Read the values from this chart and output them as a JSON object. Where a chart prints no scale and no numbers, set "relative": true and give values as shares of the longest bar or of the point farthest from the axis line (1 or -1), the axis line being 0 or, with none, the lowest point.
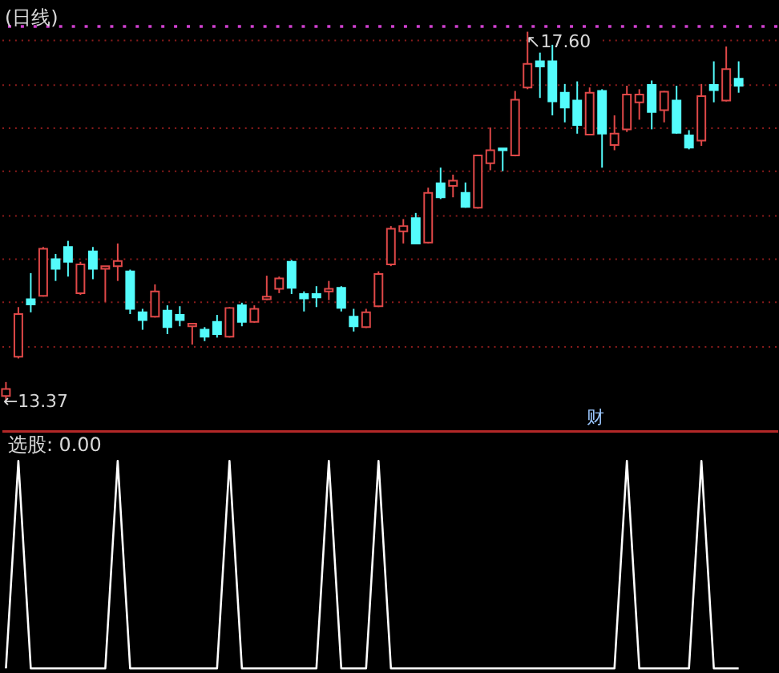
{
  "chart_data": [
    {
      "type": "candlestick",
      "title": "(日线)",
      "categories": [
        null,
        null,
        null,
        null,
        null,
        null,
        null,
        null,
        null,
        null,
        null,
        null,
        null,
        null,
        null,
        null,
        null,
        null,
        null,
        null,
        null,
        null,
        null,
        null,
        null,
        null,
        null,
        null,
        null,
        null,
        null,
        null,
        null,
        null,
        null,
        null,
        null,
        null,
        null,
        null,
        null,
        null,
        null,
        null,
        null,
        null,
        null,
        null,
        null,
        null,
        null,
        null,
        null,
        null,
        null,
        null,
        null,
        null,
        null,
        null
      ],
      "ohlc": [
        [
          13.42,
          13.58,
          13.37,
          13.5
        ],
        [
          13.87,
          14.44,
          13.85,
          14.36
        ],
        [
          14.53,
          14.83,
          14.38,
          14.47
        ],
        [
          14.57,
          15.13,
          14.56,
          15.11
        ],
        [
          14.99,
          15.05,
          14.74,
          14.88
        ],
        [
          15.13,
          15.2,
          14.79,
          14.96
        ],
        [
          14.6,
          14.96,
          14.58,
          14.93
        ],
        [
          15.08,
          15.13,
          14.76,
          14.88
        ],
        [
          14.88,
          14.91,
          14.5,
          14.91
        ],
        [
          14.91,
          15.17,
          14.74,
          14.97
        ],
        [
          14.85,
          14.87,
          14.36,
          14.42
        ],
        [
          14.38,
          14.42,
          14.18,
          14.29
        ],
        [
          14.33,
          14.7,
          14.32,
          14.62
        ],
        [
          14.4,
          14.46,
          14.13,
          14.21
        ],
        [
          14.35,
          14.45,
          14.22,
          14.29
        ],
        [
          14.22,
          14.25,
          14.01,
          14.25
        ],
        [
          14.18,
          14.21,
          14.05,
          14.1
        ],
        [
          14.27,
          14.35,
          14.09,
          14.13
        ],
        [
          14.1,
          14.44,
          14.09,
          14.43
        ],
        [
          14.46,
          14.49,
          14.22,
          14.27
        ],
        [
          14.27,
          14.46,
          14.26,
          14.42
        ],
        [
          14.53,
          14.8,
          14.52,
          14.56
        ],
        [
          14.65,
          14.79,
          14.6,
          14.77
        ],
        [
          14.96,
          14.98,
          14.59,
          14.66
        ],
        [
          14.59,
          14.62,
          14.39,
          14.54
        ],
        [
          14.59,
          14.68,
          14.44,
          14.55
        ],
        [
          14.62,
          14.74,
          14.52,
          14.65
        ],
        [
          14.66,
          14.68,
          14.39,
          14.43
        ],
        [
          14.33,
          14.42,
          14.16,
          14.22
        ],
        [
          14.21,
          14.42,
          14.2,
          14.38
        ],
        [
          14.45,
          14.85,
          14.44,
          14.82
        ],
        [
          14.93,
          15.37,
          14.91,
          15.34
        ],
        [
          15.31,
          15.45,
          15.17,
          15.37
        ],
        [
          15.46,
          15.52,
          15.16,
          15.17
        ],
        [
          15.18,
          15.81,
          15.17,
          15.75
        ],
        [
          15.86,
          16.04,
          15.68,
          15.7
        ],
        [
          15.83,
          15.96,
          15.7,
          15.89
        ],
        [
          15.75,
          15.87,
          15.58,
          15.59
        ],
        [
          15.58,
          16.19,
          15.57,
          16.18
        ],
        [
          16.09,
          16.5,
          16.01,
          16.24
        ],
        [
          16.26,
          16.26,
          16.0,
          16.24
        ],
        [
          16.18,
          16.92,
          16.17,
          16.82
        ],
        [
          16.96,
          17.6,
          16.94,
          17.23
        ],
        [
          17.26,
          17.36,
          16.84,
          17.2
        ],
        [
          17.26,
          17.45,
          16.64,
          16.8
        ],
        [
          16.9,
          17.0,
          16.56,
          16.73
        ],
        [
          16.81,
          17.03,
          16.43,
          16.53
        ],
        [
          16.42,
          16.96,
          16.41,
          16.9
        ],
        [
          16.92,
          16.94,
          16.04,
          16.43
        ],
        [
          16.3,
          16.64,
          16.24,
          16.43
        ],
        [
          16.48,
          16.98,
          16.45,
          16.88
        ],
        [
          16.79,
          16.94,
          16.59,
          16.88
        ],
        [
          16.99,
          17.04,
          16.48,
          16.68
        ],
        [
          16.7,
          16.92,
          16.56,
          16.91
        ],
        [
          16.81,
          16.98,
          16.43,
          16.44
        ],
        [
          16.41,
          16.47,
          16.25,
          16.27
        ],
        [
          16.35,
          17.0,
          16.29,
          16.86
        ],
        [
          16.99,
          17.26,
          16.79,
          16.93
        ],
        [
          16.81,
          17.43,
          16.8,
          17.17
        ],
        [
          17.06,
          17.26,
          16.9,
          16.98
        ]
      ],
      "colors": [
        "#e04848",
        "#e04848",
        "#54fcfc",
        "#e04848",
        "#54fcfc",
        "#54fcfc",
        "#e04848",
        "#54fcfc",
        "#e04848",
        "#e04848",
        "#54fcfc",
        "#54fcfc",
        "#e04848",
        "#54fcfc",
        "#54fcfc",
        "#e04848",
        "#54fcfc",
        "#54fcfc",
        "#e04848",
        "#54fcfc",
        "#e04848",
        "#e04848",
        "#e04848",
        "#54fcfc",
        "#54fcfc",
        "#54fcfc",
        "#e04848",
        "#54fcfc",
        "#54fcfc",
        "#e04848",
        "#e04848",
        "#e04848",
        "#e04848",
        "#54fcfc",
        "#e04848",
        "#54fcfc",
        "#e04848",
        "#54fcfc",
        "#e04848",
        "#e04848",
        "#54fcfc",
        "#e04848",
        "#e04848",
        "#54fcfc",
        "#54fcfc",
        "#54fcfc",
        "#54fcfc",
        "#e04848",
        "#54fcfc",
        "#e04848",
        "#e04848",
        "#e04848",
        "#54fcfc",
        "#e04848",
        "#54fcfc",
        "#54fcfc",
        "#e04848",
        "#54fcfc",
        "#e04848",
        "#54fcfc"
      ],
      "grid": "y",
      "yticks": [
        {
          "value": 14.0,
          "label": null
        },
        {
          "value": 14.5,
          "label": null
        },
        {
          "value": 15.0,
          "label": null
        },
        {
          "value": 15.5,
          "label": null
        },
        {
          "value": 16.0,
          "label": null
        },
        {
          "value": 16.5,
          "label": null
        },
        {
          "value": 17.0,
          "label": null
        },
        {
          "value": 17.5,
          "label": null
        }
      ],
      "ref_lines": [
        {
          "axis": "y",
          "value": 17.66,
          "color": "#d040d0",
          "line_style": "dotted"
        }
      ],
      "annotations": [
        {
          "text": "↖17.60",
          "y": 17.6
        },
        "←13.37",
        "财"
      ],
      "tick_labels": false
    },
    {
      "type": "line",
      "title": "选股: 0.00",
      "categories": [
        null,
        null,
        null,
        null,
        null,
        null,
        null,
        null,
        null,
        null,
        null,
        null,
        null,
        null,
        null,
        null,
        null,
        null,
        null,
        null,
        null,
        null,
        null,
        null,
        null,
        null,
        null,
        null,
        null,
        null,
        null,
        null,
        null,
        null,
        null,
        null,
        null,
        null,
        null,
        null,
        null,
        null,
        null,
        null,
        null,
        null,
        null,
        null,
        null,
        null,
        null,
        null,
        null,
        null,
        null,
        null,
        null,
        null,
        null,
        null
      ],
      "series": [
        {
          "color": "#ffffff",
          "values": [
            0,
            1,
            0,
            0,
            0,
            0,
            0,
            0,
            0,
            1,
            0,
            0,
            0,
            0,
            0,
            0,
            0,
            0,
            1,
            0,
            0,
            0,
            0,
            0,
            0,
            0,
            1,
            0,
            0,
            0,
            1,
            0,
            0,
            0,
            0,
            0,
            0,
            0,
            0,
            0,
            0,
            0,
            0,
            0,
            0,
            0,
            0,
            0,
            0,
            0,
            1,
            0,
            0,
            0,
            0,
            0,
            1,
            0,
            0,
            0
          ]
        }
      ],
      "relative": true,
      "tick_labels": false
    }
  ]
}
